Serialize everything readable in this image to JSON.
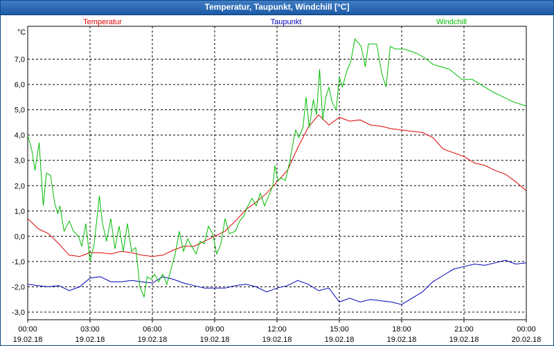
{
  "window": {
    "title": "Temperatur, Taupunkt, Windchill [°C]"
  },
  "chart_data": {
    "type": "line",
    "title": "Temperatur, Taupunkt, Windchill [°C]",
    "ylabel": "°C",
    "xlabel": "",
    "ylim": [
      -3.3,
      8.3
    ],
    "xlim": [
      0,
      24
    ],
    "y_ticks": [
      "7,0",
      "6,0",
      "5,0",
      "4,0",
      "3,0",
      "2,0",
      "1,0",
      "0,0",
      "-1,0",
      "-2,0",
      "-3,0"
    ],
    "y_tick_values": [
      7,
      6,
      5,
      4,
      3,
      2,
      1,
      0,
      -1,
      -2,
      -3
    ],
    "x_ticks": [
      {
        "time": "00:00",
        "date": "19.02.18"
      },
      {
        "time": "03:00",
        "date": "19.02.18"
      },
      {
        "time": "06:00",
        "date": "19.02.18"
      },
      {
        "time": "09:00",
        "date": "19.02.18"
      },
      {
        "time": "12:00",
        "date": "19.02.18"
      },
      {
        "time": "15:00",
        "date": "19.02.18"
      },
      {
        "time": "18:00",
        "date": "19.02.18"
      },
      {
        "time": "21:00",
        "date": "19.02.18"
      },
      {
        "time": "00:00",
        "date": "20.02.18"
      }
    ],
    "grid": true,
    "legend": "top",
    "series": [
      {
        "name": "Temperatur",
        "color": "#dd0000",
        "points": [
          [
            0,
            0.7
          ],
          [
            0.5,
            0.3
          ],
          [
            1,
            0.1
          ],
          [
            1.5,
            -0.3
          ],
          [
            2,
            -0.75
          ],
          [
            2.5,
            -0.8
          ],
          [
            3,
            -0.65
          ],
          [
            3.5,
            -0.65
          ],
          [
            4,
            -0.7
          ],
          [
            4.5,
            -0.6
          ],
          [
            5,
            -0.65
          ],
          [
            5.5,
            -0.75
          ],
          [
            6,
            -0.8
          ],
          [
            6.5,
            -0.75
          ],
          [
            7,
            -0.55
          ],
          [
            7.5,
            -0.4
          ],
          [
            8,
            -0.4
          ],
          [
            8.5,
            -0.2
          ],
          [
            9,
            0
          ],
          [
            9.5,
            0.2
          ],
          [
            10,
            0.6
          ],
          [
            10.5,
            1.05
          ],
          [
            11,
            1.35
          ],
          [
            11.5,
            1.7
          ],
          [
            12,
            2.15
          ],
          [
            12.5,
            2.6
          ],
          [
            13,
            3.5
          ],
          [
            13.5,
            4.3
          ],
          [
            14,
            4.8
          ],
          [
            14.5,
            4.4
          ],
          [
            15,
            4.7
          ],
          [
            15.5,
            4.55
          ],
          [
            16,
            4.6
          ],
          [
            16.5,
            4.4
          ],
          [
            17,
            4.35
          ],
          [
            17.5,
            4.25
          ],
          [
            18,
            4.2
          ],
          [
            18.5,
            4.15
          ],
          [
            19,
            4.1
          ],
          [
            19.5,
            3.9
          ],
          [
            20,
            3.45
          ],
          [
            20.5,
            3.3
          ],
          [
            21,
            3.15
          ],
          [
            21.5,
            2.9
          ],
          [
            22,
            2.8
          ],
          [
            22.5,
            2.6
          ],
          [
            23,
            2.45
          ],
          [
            23.5,
            2.15
          ],
          [
            24,
            1.8
          ]
        ]
      },
      {
        "name": "Taupunkt",
        "color": "#0000bb",
        "points": [
          [
            0,
            -1.9
          ],
          [
            0.5,
            -1.95
          ],
          [
            1,
            -2
          ],
          [
            1.5,
            -1.95
          ],
          [
            2,
            -2.15
          ],
          [
            2.5,
            -2
          ],
          [
            3,
            -1.65
          ],
          [
            3.5,
            -1.6
          ],
          [
            4,
            -1.8
          ],
          [
            4.5,
            -1.8
          ],
          [
            5,
            -1.75
          ],
          [
            5.5,
            -1.8
          ],
          [
            6,
            -1.85
          ],
          [
            6.5,
            -1.6
          ],
          [
            7,
            -1.7
          ],
          [
            7.5,
            -1.85
          ],
          [
            8,
            -1.95
          ],
          [
            8.5,
            -2.05
          ],
          [
            9,
            -2.05
          ],
          [
            9.5,
            -2.05
          ],
          [
            10,
            -1.95
          ],
          [
            10.5,
            -1.9
          ],
          [
            11,
            -2
          ],
          [
            11.5,
            -2.2
          ],
          [
            12,
            -2.05
          ],
          [
            12.5,
            -1.95
          ],
          [
            13,
            -1.75
          ],
          [
            13.5,
            -1.9
          ],
          [
            14,
            -2.15
          ],
          [
            14.5,
            -2.05
          ],
          [
            15,
            -2.6
          ],
          [
            15.5,
            -2.45
          ],
          [
            16,
            -2.6
          ],
          [
            16.5,
            -2.5
          ],
          [
            17,
            -2.55
          ],
          [
            17.5,
            -2.6
          ],
          [
            18,
            -2.7
          ],
          [
            18.5,
            -2.45
          ],
          [
            19,
            -2.2
          ],
          [
            19.5,
            -1.8
          ],
          [
            20,
            -1.55
          ],
          [
            20.5,
            -1.3
          ],
          [
            21,
            -1.2
          ],
          [
            21.5,
            -1.1
          ],
          [
            22,
            -1.15
          ],
          [
            22.5,
            -1.05
          ],
          [
            23,
            -0.95
          ],
          [
            23.5,
            -1.1
          ],
          [
            24,
            -1.05
          ]
        ]
      },
      {
        "name": "Windchill",
        "color": "#00bb00",
        "points": [
          [
            0,
            4
          ],
          [
            0.2,
            3.4
          ],
          [
            0.35,
            2.6
          ],
          [
            0.55,
            3.7
          ],
          [
            0.75,
            1.2
          ],
          [
            0.9,
            2.5
          ],
          [
            1.1,
            2.4
          ],
          [
            1.3,
            1.3
          ],
          [
            1.45,
            0.9
          ],
          [
            1.55,
            1.2
          ],
          [
            1.75,
            0.2
          ],
          [
            2,
            0.6
          ],
          [
            2.2,
            0.2
          ],
          [
            2.45,
            0
          ],
          [
            2.6,
            -0.4
          ],
          [
            2.8,
            0.5
          ],
          [
            3,
            -1
          ],
          [
            3.2,
            -0.3
          ],
          [
            3.45,
            1.6
          ],
          [
            3.6,
            0.5
          ],
          [
            3.8,
            -0.2
          ],
          [
            4,
            0.7
          ],
          [
            4.2,
            -0.5
          ],
          [
            4.4,
            0.4
          ],
          [
            4.6,
            -0.6
          ],
          [
            4.8,
            0.5
          ],
          [
            5,
            -0.6
          ],
          [
            5.2,
            -0.45
          ],
          [
            5.4,
            -2
          ],
          [
            5.6,
            -2.4
          ],
          [
            5.75,
            -1.6
          ],
          [
            5.95,
            -1.7
          ],
          [
            6.1,
            -1.5
          ],
          [
            6.3,
            -1.8
          ],
          [
            6.5,
            -1.5
          ],
          [
            6.7,
            -1.9
          ],
          [
            6.9,
            -1.3
          ],
          [
            7.1,
            -0.7
          ],
          [
            7.3,
            0.2
          ],
          [
            7.5,
            -0.6
          ],
          [
            7.7,
            -0.1
          ],
          [
            7.9,
            -0.4
          ],
          [
            8.1,
            -0.7
          ],
          [
            8.3,
            -0.2
          ],
          [
            8.5,
            -0.3
          ],
          [
            8.7,
            0.4
          ],
          [
            8.9,
            0.1
          ],
          [
            9.1,
            -0.7
          ],
          [
            9.3,
            -0.3
          ],
          [
            9.5,
            0.7
          ],
          [
            9.7,
            0.1
          ],
          [
            10,
            0.2
          ],
          [
            10.2,
            0.6
          ],
          [
            10.4,
            0.8
          ],
          [
            10.6,
            1.2
          ],
          [
            10.8,
            1.5
          ],
          [
            11,
            1.2
          ],
          [
            11.2,
            1.7
          ],
          [
            11.4,
            1.2
          ],
          [
            11.6,
            1.6
          ],
          [
            11.8,
            2
          ],
          [
            11.9,
            2.8
          ],
          [
            12.05,
            2.2
          ],
          [
            12.2,
            2.3
          ],
          [
            12.4,
            2.2
          ],
          [
            12.6,
            2.9
          ],
          [
            12.8,
            3.8
          ],
          [
            12.9,
            4.2
          ],
          [
            13.05,
            3.9
          ],
          [
            13.25,
            4.3
          ],
          [
            13.4,
            5.5
          ],
          [
            13.55,
            4.3
          ],
          [
            13.75,
            5.4
          ],
          [
            13.9,
            4.8
          ],
          [
            14.05,
            6.6
          ],
          [
            14.2,
            4.6
          ],
          [
            14.35,
            5.5
          ],
          [
            14.5,
            5.9
          ],
          [
            14.65,
            5.3
          ],
          [
            14.85,
            5
          ],
          [
            15,
            6.3
          ],
          [
            15.15,
            5.9
          ],
          [
            15.35,
            6.5
          ],
          [
            15.55,
            6.9
          ],
          [
            15.75,
            7.8
          ],
          [
            16.05,
            7.5
          ],
          [
            16.25,
            6.7
          ],
          [
            16.4,
            7.6
          ],
          [
            16.8,
            7.6
          ],
          [
            17.05,
            6.4
          ],
          [
            17.25,
            5.9
          ],
          [
            17.45,
            7.5
          ],
          [
            17.7,
            7.4
          ],
          [
            18.1,
            7.4
          ],
          [
            18.5,
            7.3
          ],
          [
            18.8,
            7.2
          ],
          [
            19.2,
            7
          ],
          [
            19.5,
            6.8
          ],
          [
            19.9,
            6.7
          ],
          [
            20.3,
            6.6
          ],
          [
            20.6,
            6.4
          ],
          [
            20.9,
            6.2
          ],
          [
            21.4,
            6.2
          ],
          [
            21.8,
            6
          ],
          [
            22.4,
            5.7
          ],
          [
            22.9,
            5.5
          ],
          [
            23.4,
            5.3
          ],
          [
            24,
            5.15
          ]
        ]
      }
    ]
  }
}
